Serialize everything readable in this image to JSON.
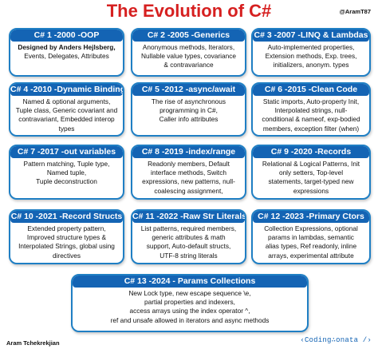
{
  "title": "The Evolution of C#",
  "handle": "@AramT87",
  "footer": {
    "author": "Aram Tchekrekjian",
    "logo": "‹Coding∴onata /›"
  },
  "cards": [
    {
      "heading": "C# 1 -2000 -OOP",
      "lines": [
        "Events, Delegates, Attributes"
      ],
      "bold": "Designed by Anders Hejlsberg,"
    },
    {
      "heading": "C# 2 -2005 -Generics",
      "lines": [
        "Anonymous methods, Iterators,",
        "Nullable value types, covariance",
        "& contravariance"
      ]
    },
    {
      "heading": "C# 3 -2007 -LINQ & Lambdas",
      "lines": [
        "Auto-implemented properties,",
        "Extension methods, Exp. trees,",
        "initializers, anonym. types"
      ]
    },
    {
      "heading": "C# 4 -2010 -Dynamic Binding",
      "lines": [
        "Named & optional arguments,",
        "Tuple class, Generic covariant and",
        "contravariant, Embedded interop",
        "types"
      ]
    },
    {
      "heading": "C# 5 -2012 -async/await",
      "lines": [
        "The rise of asynchronous",
        "programming in C#,",
        "Caller info attributes"
      ]
    },
    {
      "heading": "C# 6 -2015 -Clean Code",
      "lines": [
        "Static imports, Auto-property Init,",
        "Interpolated strings, null-",
        "conditional & nameof, exp-bodied",
        "members, exception filter (when)"
      ]
    },
    {
      "heading": "C# 7 -2017 -out variables",
      "lines": [
        "Pattern matching, Tuple type,",
        "Named tuple,",
        "Tuple deconstruction"
      ]
    },
    {
      "heading": "C# 8 -2019 -index/range",
      "lines": [
        "Readonly members, Default",
        "interface methods, Switch",
        "expressions, new patterns, null-",
        "coalescing assignment,"
      ]
    },
    {
      "heading": "C# 9 -2020 -Records",
      "lines": [
        "Relational & Logical Patterns, Init",
        "only setters, Top-level",
        "statements, target-typed new",
        "expressions"
      ]
    },
    {
      "heading": "C# 10 -2021 -Record Structs",
      "lines": [
        "Extended property pattern,",
        "Improved structure types &",
        "Interpolated Strings, global using",
        "directives"
      ]
    },
    {
      "heading": "C# 11 -2022 -Raw Str Literals",
      "lines": [
        "List patterns, required members,",
        "generic attributes & math",
        "support, Auto-default structs,",
        "UTF-8 string literals"
      ]
    },
    {
      "heading": "C# 12 -2023 -Primary Ctors",
      "lines": [
        "Collection Expressions, optional",
        "params in lambdas, semantic",
        "alias types, Ref readonly, inline",
        "arrays, experimental attribute"
      ]
    },
    {
      "heading": "C# 13 -2024 - Params Collections",
      "lines": [
        "New Lock type, new escape sequence \\e,",
        "partial properties and indexers,",
        "access arrays using the index operator ^,",
        "ref and unsafe allowed in iterators and async methods"
      ]
    }
  ]
}
